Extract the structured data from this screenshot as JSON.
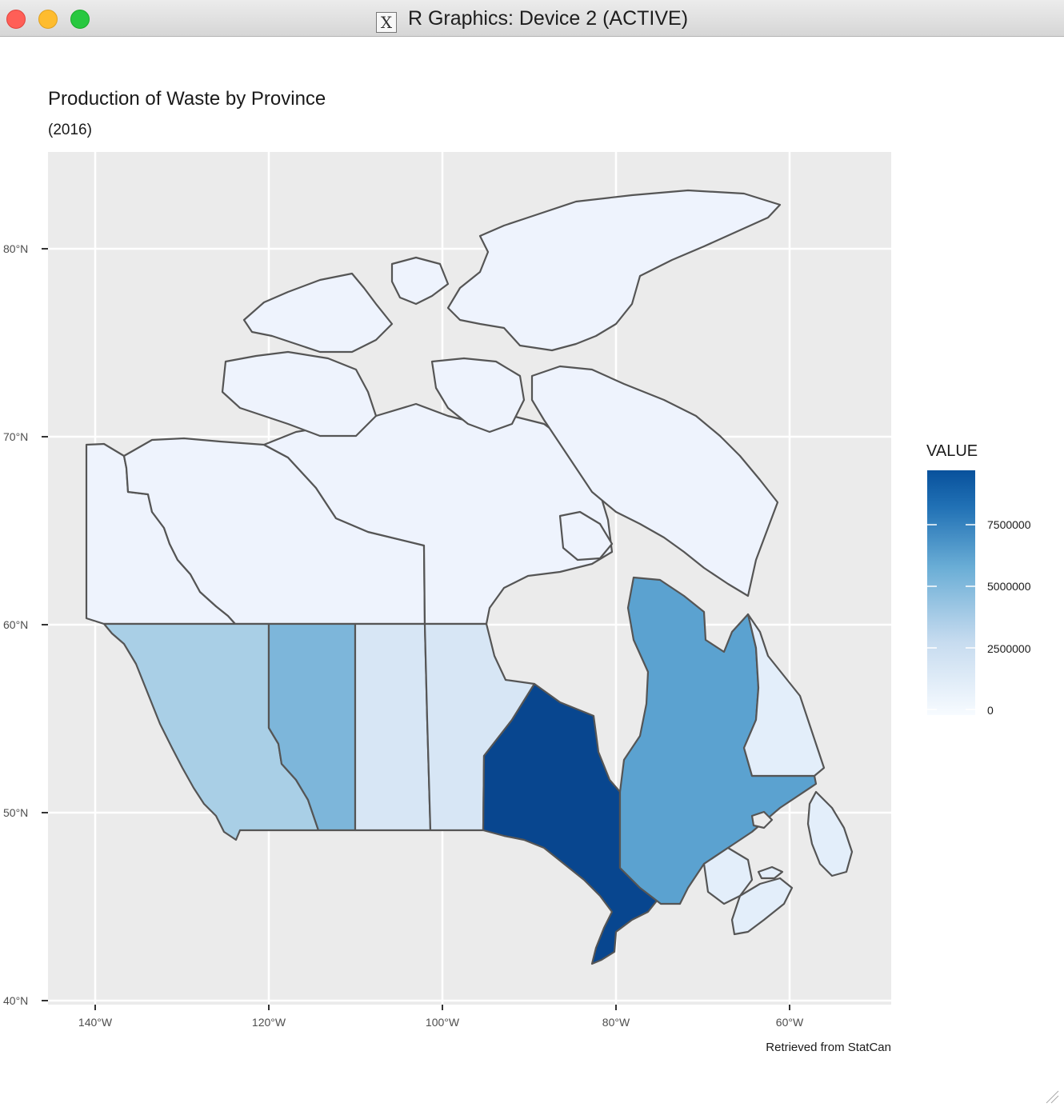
{
  "window": {
    "title": "R Graphics: Device 2 (ACTIVE)",
    "icon": "x11-icon"
  },
  "plot": {
    "title": "Production of Waste by Province",
    "subtitle": "(2016)",
    "caption": "Retrieved from StatCan",
    "y_ticks": [
      "80°N",
      "70°N",
      "60°N",
      "50°N",
      "40°N"
    ],
    "x_ticks": [
      "140°W",
      "120°W",
      "100°W",
      "80°W",
      "60°W"
    ],
    "background": "#ebebeb",
    "grid_color": "#ffffff",
    "border_color": "#555555"
  },
  "legend": {
    "title": "VALUE",
    "labels": [
      "7500000",
      "5000000",
      "2500000",
      "0"
    ],
    "low_color": "#f7fbff",
    "high_color": "#08519c"
  },
  "regions": [
    {
      "name": "Yukon",
      "color": "#eef3fd"
    },
    {
      "name": "Northwest Territories",
      "color": "#eef3fd"
    },
    {
      "name": "Nunavut",
      "color": "#eef3fd"
    },
    {
      "name": "British Columbia",
      "color": "#a9cfe6"
    },
    {
      "name": "Alberta",
      "color": "#7db6da"
    },
    {
      "name": "Saskatchewan",
      "color": "#d7e6f5"
    },
    {
      "name": "Manitoba",
      "color": "#d7e6f5"
    },
    {
      "name": "Ontario",
      "color": "#08468f"
    },
    {
      "name": "Quebec",
      "color": "#5ba2d0"
    },
    {
      "name": "Newfoundland and Labrador",
      "color": "#e3eefa"
    },
    {
      "name": "New Brunswick",
      "color": "#e3eefa"
    },
    {
      "name": "Nova Scotia",
      "color": "#e3eefa"
    }
  ]
}
